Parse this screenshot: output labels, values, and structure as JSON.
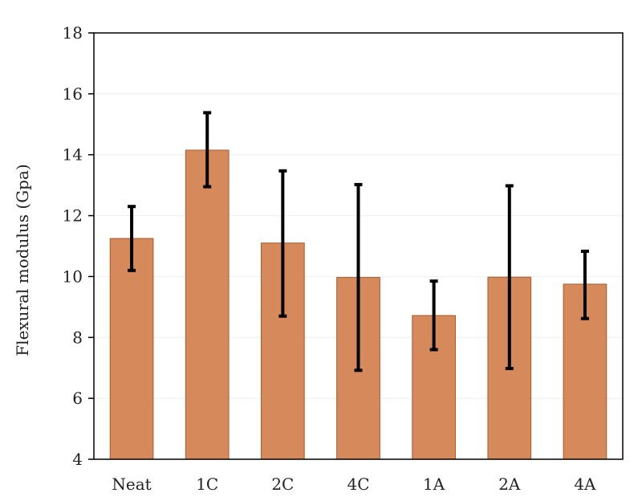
{
  "chart_data": {
    "type": "bar",
    "title": "",
    "xlabel": "",
    "ylabel": "Flexural modulus (Gpa)",
    "ylim": [
      4,
      18
    ],
    "yticks": [
      4,
      6,
      8,
      10,
      12,
      14,
      16,
      18
    ],
    "grid": true,
    "categories": [
      "Neat",
      "1C",
      "2C",
      "4C",
      "1A",
      "2A",
      "4A"
    ],
    "values": [
      11.25,
      14.15,
      11.1,
      9.97,
      8.72,
      9.98,
      9.75
    ],
    "error_low": [
      10.2,
      12.95,
      8.7,
      6.92,
      7.6,
      6.98,
      8.62
    ],
    "error_high": [
      12.3,
      15.38,
      13.47,
      13.02,
      9.85,
      12.98,
      10.83
    ],
    "colors": {
      "bar": "#d6895a",
      "bar_edge": "#a85a28",
      "error": "#000000"
    }
  }
}
